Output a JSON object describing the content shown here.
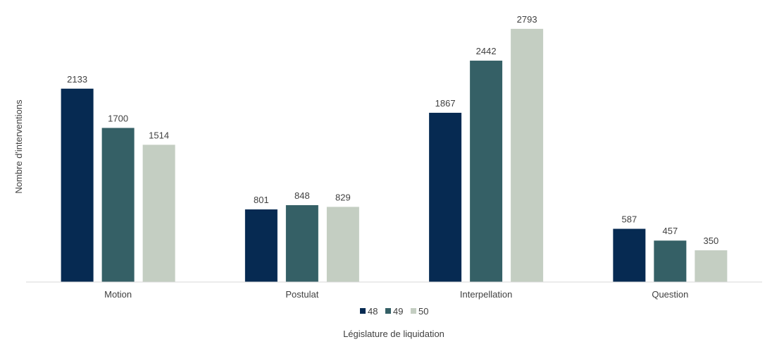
{
  "chart_data": {
    "type": "bar",
    "categories": [
      "Motion",
      "Postulat",
      "Interpellation",
      "Question"
    ],
    "series": [
      {
        "name": "48",
        "values": [
          2133,
          801,
          1867,
          587
        ],
        "color": "#062a52"
      },
      {
        "name": "49",
        "values": [
          1700,
          848,
          2442,
          457
        ],
        "color": "#356066"
      },
      {
        "name": "50",
        "values": [
          1514,
          829,
          2793,
          350
        ],
        "color": "#c4cec2"
      }
    ],
    "title": "",
    "xlabel": "Législature de liquidation",
    "ylabel": "Nombre d'interventions",
    "ylim": [
      0,
      2800
    ],
    "grid": false,
    "legend_position": "bottom",
    "data_labels": true
  }
}
